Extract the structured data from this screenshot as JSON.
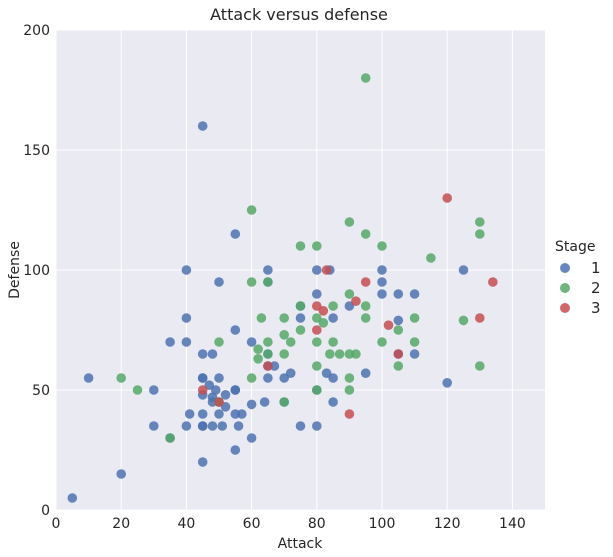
{
  "chart_data": {
    "type": "scatter",
    "title": "Attack versus defense",
    "xlabel": "Attack",
    "ylabel": "Defense",
    "xlim": [
      0,
      150
    ],
    "ylim": [
      0,
      200
    ],
    "xticks": [
      0,
      20,
      40,
      60,
      80,
      100,
      120,
      140
    ],
    "yticks": [
      0,
      50,
      100,
      150,
      200
    ],
    "grid": true,
    "legend": {
      "title": "Stage",
      "placement": "right"
    },
    "series": [
      {
        "name": "1",
        "color": "#4c72b0",
        "points": [
          [
            5,
            5
          ],
          [
            10,
            55
          ],
          [
            20,
            15
          ],
          [
            30,
            35
          ],
          [
            30,
            50
          ],
          [
            35,
            30
          ],
          [
            35,
            70
          ],
          [
            40,
            35
          ],
          [
            40,
            70
          ],
          [
            40,
            80
          ],
          [
            40,
            100
          ],
          [
            41,
            40
          ],
          [
            45,
            20
          ],
          [
            45,
            35
          ],
          [
            45,
            35
          ],
          [
            45,
            40
          ],
          [
            45,
            48
          ],
          [
            45,
            55
          ],
          [
            45,
            55
          ],
          [
            45,
            65
          ],
          [
            45,
            160
          ],
          [
            47,
            52
          ],
          [
            48,
            35
          ],
          [
            48,
            45
          ],
          [
            48,
            47
          ],
          [
            48,
            65
          ],
          [
            49,
            50
          ],
          [
            50,
            40
          ],
          [
            50,
            45
          ],
          [
            50,
            55
          ],
          [
            50,
            95
          ],
          [
            51,
            35
          ],
          [
            52,
            43
          ],
          [
            52,
            48
          ],
          [
            55,
            25
          ],
          [
            55,
            40
          ],
          [
            55,
            50
          ],
          [
            55,
            50
          ],
          [
            55,
            75
          ],
          [
            55,
            115
          ],
          [
            56,
            35
          ],
          [
            57,
            40
          ],
          [
            60,
            30
          ],
          [
            60,
            44
          ],
          [
            60,
            70
          ],
          [
            64,
            45
          ],
          [
            65,
            55
          ],
          [
            65,
            60
          ],
          [
            65,
            65
          ],
          [
            65,
            95
          ],
          [
            65,
            100
          ],
          [
            67,
            60
          ],
          [
            70,
            45
          ],
          [
            70,
            55
          ],
          [
            72,
            57
          ],
          [
            75,
            35
          ],
          [
            75,
            80
          ],
          [
            75,
            85
          ],
          [
            80,
            35
          ],
          [
            80,
            50
          ],
          [
            80,
            90
          ],
          [
            80,
            100
          ],
          [
            83,
            57
          ],
          [
            84,
            100
          ],
          [
            85,
            45
          ],
          [
            85,
            55
          ],
          [
            85,
            80
          ],
          [
            90,
            85
          ],
          [
            95,
            57
          ],
          [
            100,
            90
          ],
          [
            100,
            95
          ],
          [
            100,
            100
          ],
          [
            105,
            65
          ],
          [
            105,
            79
          ],
          [
            105,
            90
          ],
          [
            110,
            65
          ],
          [
            110,
            90
          ],
          [
            120,
            53
          ],
          [
            125,
            100
          ]
        ]
      },
      {
        "name": "2",
        "color": "#55a868",
        "points": [
          [
            20,
            55
          ],
          [
            25,
            50
          ],
          [
            35,
            30
          ],
          [
            50,
            45
          ],
          [
            50,
            70
          ],
          [
            60,
            55
          ],
          [
            60,
            95
          ],
          [
            60,
            125
          ],
          [
            62,
            67
          ],
          [
            62,
            63
          ],
          [
            63,
            80
          ],
          [
            65,
            65
          ],
          [
            65,
            70
          ],
          [
            65,
            95
          ],
          [
            70,
            45
          ],
          [
            70,
            65
          ],
          [
            70,
            73
          ],
          [
            70,
            80
          ],
          [
            72,
            70
          ],
          [
            75,
            75
          ],
          [
            75,
            85
          ],
          [
            75,
            110
          ],
          [
            80,
            50
          ],
          [
            80,
            60
          ],
          [
            80,
            70
          ],
          [
            80,
            80
          ],
          [
            80,
            110
          ],
          [
            82,
            78
          ],
          [
            84,
            65
          ],
          [
            85,
            70
          ],
          [
            85,
            85
          ],
          [
            87,
            65
          ],
          [
            90,
            50
          ],
          [
            90,
            55
          ],
          [
            90,
            65
          ],
          [
            90,
            90
          ],
          [
            90,
            120
          ],
          [
            92,
            65
          ],
          [
            95,
            80
          ],
          [
            95,
            85
          ],
          [
            95,
            115
          ],
          [
            95,
            180
          ],
          [
            100,
            70
          ],
          [
            100,
            110
          ],
          [
            105,
            60
          ],
          [
            105,
            75
          ],
          [
            110,
            70
          ],
          [
            110,
            80
          ],
          [
            115,
            105
          ],
          [
            125,
            79
          ],
          [
            130,
            60
          ],
          [
            130,
            115
          ],
          [
            130,
            120
          ]
        ]
      },
      {
        "name": "3",
        "color": "#c44e52",
        "points": [
          [
            45,
            50
          ],
          [
            50,
            45
          ],
          [
            65,
            60
          ],
          [
            80,
            75
          ],
          [
            80,
            85
          ],
          [
            82,
            83
          ],
          [
            83,
            100
          ],
          [
            90,
            40
          ],
          [
            92,
            87
          ],
          [
            95,
            95
          ],
          [
            102,
            77
          ],
          [
            105,
            65
          ],
          [
            120,
            130
          ],
          [
            130,
            80
          ],
          [
            134,
            95
          ]
        ]
      }
    ]
  }
}
